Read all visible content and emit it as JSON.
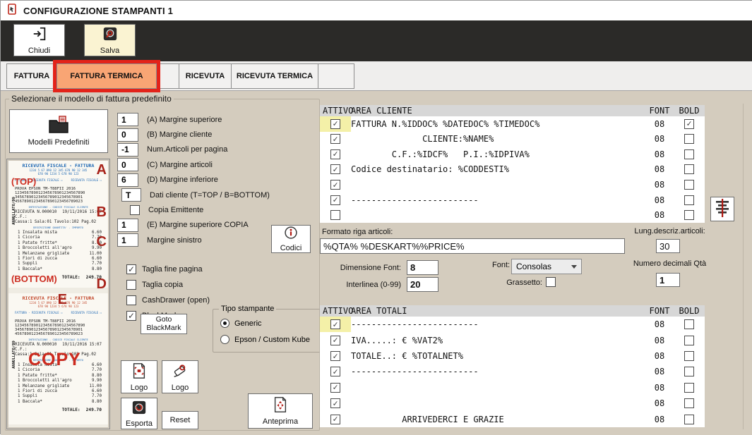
{
  "window": {
    "title": "CONFIGURAZIONE STAMPANTI 1"
  },
  "toolbar": {
    "chiudi": "Chiudi",
    "salva": "Salva"
  },
  "tabs": [
    {
      "label": "FATTURA",
      "selected": false
    },
    {
      "label": "FATTURA TERMICA",
      "selected": true
    },
    {
      "label": "",
      "selected": false
    },
    {
      "label": "RICEVUTA",
      "selected": false
    },
    {
      "label": "RICEVUTA TERMICA",
      "selected": false
    },
    {
      "label": "",
      "selected": false
    }
  ],
  "left": {
    "group_label": "Selezionare il modello di fattura predefinito",
    "modelli_button": "Modelli Predefiniti"
  },
  "margin_rows": [
    {
      "kind": "input",
      "value": "1",
      "label": "(A) Margine superiore"
    },
    {
      "kind": "input",
      "value": "0",
      "label": "(B) Margine cliente"
    },
    {
      "kind": "input",
      "value": "-1",
      "label": "Num.Articoli per pagina"
    },
    {
      "kind": "input",
      "value": "0",
      "label": "(C) Margine articoli"
    },
    {
      "kind": "input",
      "value": "6",
      "label": "(D) Margine inferiore"
    },
    {
      "kind": "input-small",
      "value": "T",
      "label": "Dati cliente (T=TOP / B=BOTTOM)"
    },
    {
      "kind": "checkbox",
      "checked": false,
      "label": "Copia Emittente"
    },
    {
      "kind": "input",
      "value": "1",
      "label": "(E) Margine superiore COPIA"
    },
    {
      "kind": "input",
      "value": "1",
      "label": "Margine sinistro"
    }
  ],
  "options": [
    {
      "label": "Taglia fine pagina",
      "checked": true
    },
    {
      "label": "Taglia copia",
      "checked": false
    },
    {
      "label": "CashDrawer (open)",
      "checked": false
    },
    {
      "label": "BlackMark",
      "checked": true
    }
  ],
  "goto_blackmark": "Goto BlackMark",
  "tipo_stampante": {
    "legend": "Tipo stampante",
    "options": [
      {
        "label": "Generic",
        "selected": true
      },
      {
        "label": "Epson / Custom Kube",
        "selected": false
      }
    ]
  },
  "buttons": {
    "logo_set": "Logo",
    "logo_remove": "Logo",
    "esporta": "Esporta",
    "reset": "Reset",
    "anteprima": "Anteprima",
    "codici": "Codici"
  },
  "area_cliente": {
    "attivo": "ATTIVO",
    "title": "AREA CLIENTE",
    "font": "FONT",
    "bold": "BOLD",
    "rows": [
      {
        "attivo": true,
        "hl": true,
        "text": "FATTURA N.%IDDOC% %DATEDOC% %TIMEDOC%",
        "font": "08",
        "bold": true
      },
      {
        "attivo": true,
        "hl": false,
        "text": "              CLIENTE:%NAME%",
        "font": "08",
        "bold": false
      },
      {
        "attivo": true,
        "hl": false,
        "text": "        C.F.:%IDCF%   P.I.:%IDPIVA%",
        "font": "08",
        "bold": false
      },
      {
        "attivo": true,
        "hl": false,
        "text": "Codice destinatario: %CODDESTI%",
        "font": "08",
        "bold": false
      },
      {
        "attivo": true,
        "hl": false,
        "text": "",
        "font": "08",
        "bold": false
      },
      {
        "attivo": true,
        "hl": false,
        "text": "-------------------------",
        "font": "08",
        "bold": false
      },
      {
        "attivo": false,
        "hl": false,
        "text": "",
        "font": "08",
        "bold": false
      }
    ]
  },
  "area_totali": {
    "attivo": "ATTIVO",
    "title": "AREA TOTALI",
    "font": "FONT",
    "bold": "BOLD",
    "rows": [
      {
        "attivo": true,
        "hl": true,
        "text": "-------------------------",
        "font": "08",
        "bold": false
      },
      {
        "attivo": true,
        "hl": false,
        "text": "IVA.....: € %VAT2%",
        "font": "08",
        "bold": false
      },
      {
        "attivo": true,
        "hl": false,
        "text": "TOTALE..: € %TOTALNET%",
        "font": "08",
        "bold": false
      },
      {
        "attivo": true,
        "hl": false,
        "text": "-------------------------",
        "font": "08",
        "bold": false
      },
      {
        "attivo": true,
        "hl": false,
        "text": "",
        "font": "08",
        "bold": false
      },
      {
        "attivo": true,
        "hl": false,
        "text": "",
        "font": "08",
        "bold": false
      },
      {
        "attivo": true,
        "hl": false,
        "text": "          ARRIVEDERCI E GRAZIE",
        "font": "08",
        "bold": false
      }
    ]
  },
  "formato": {
    "label": "Formato riga articoli:",
    "value": "%QTA% %DESKART%%PRICE%"
  },
  "lung": {
    "label": "Lung.descriz.articoli:",
    "value": "30"
  },
  "dimensione": {
    "label": "Dimensione Font:",
    "value": "8"
  },
  "interlinea": {
    "label": "Interlinea (0-99)",
    "value": "20"
  },
  "font_select": {
    "label": "Font:",
    "value": "Consolas"
  },
  "grassetto": {
    "label": "Grassetto:",
    "checked": false
  },
  "decimali": {
    "label": "Numero decimali Qtà",
    "value": "1"
  },
  "receipt": {
    "vertical": "ANNULLATO/09",
    "top_label": "(TOP)",
    "bottom_label": "(BOTTOM)",
    "copy_label": "COPY",
    "letters": [
      "A",
      "B",
      "C",
      "D",
      "E"
    ],
    "header": "RICEVUTA FISCALE - FATTURA",
    "header_sub": [
      "1234 5 67 890 12 345 678 90 12 345",
      "678 90 1234 5 678 90 123"
    ],
    "check_left": "FATTURA - RICEVUTA FISCALE ☐",
    "check_right": "RICEVUTA FISCALE ☐",
    "printer": "PROVA EPSON TM-T88FII 2016",
    "digits": [
      "123456789012345678901234567890",
      "34567890123456789012345678901",
      "45678901234567890123456789023"
    ],
    "sep": "INTESTAZIONE - CODICE FISCALE CLIENTE",
    "items_sep": "DESCRIZIONE QUANTITA' - IMPORTO",
    "ricevuta": "RICEVUTA N.000010",
    "datetime": "19/11/2016 15:07",
    "cf": "C.F.:",
    "cassa": "Cassa:1 Sala:01 Tavolo:102 Pag.02",
    "items": [
      {
        "name": "1 Insalata mista",
        "price": "6.60"
      },
      {
        "name": "1 Cicoria",
        "price": "7.70"
      },
      {
        "name": "1 Patate fritte*",
        "price": "8.80"
      },
      {
        "name": "1 Broccoletti all'agro",
        "price": "9.90"
      },
      {
        "name": "1 Melanzane grigliate",
        "price": "11.00"
      },
      {
        "name": "1 Fiori di zucca",
        "price": "6.60"
      },
      {
        "name": "1 Suppli",
        "price": "7.70"
      },
      {
        "name": "1 Baccala*",
        "price": "8.80"
      }
    ],
    "totale_label": "TOTALE:",
    "totale_value": "249.70"
  },
  "colors": {
    "accent_red": "#e3231a",
    "tab_selected": "#f9a574",
    "highlight_yellow": "#f4f0a8",
    "salva_bg": "#faf3d2",
    "receipt_blue": "#1b66b3",
    "annotation_red": "#a8241b",
    "content_bg": "#d4ccbe",
    "toolbar_bg": "#2b2a28"
  }
}
